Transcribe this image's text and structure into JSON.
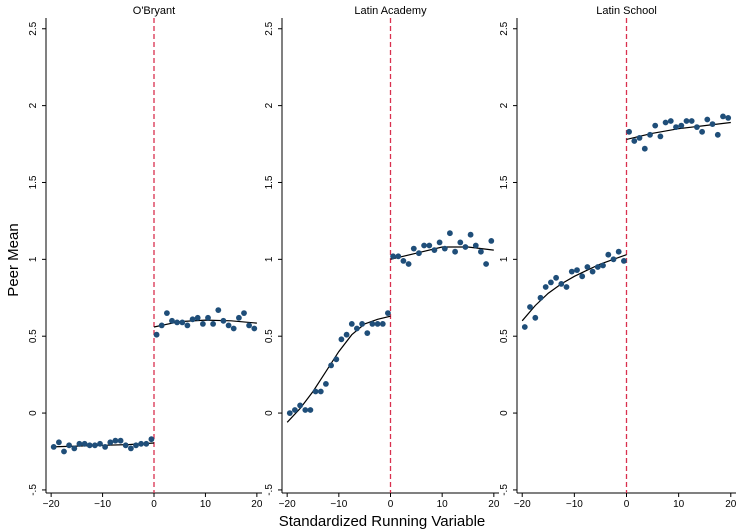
{
  "chart_data": {
    "type": "scatter",
    "ylabel": "Peer Mean",
    "xlabel": "Standardized Running Variable",
    "style": {
      "marker_color": "#1f4e79",
      "fit_color": "#000000",
      "cutoff_color": "#d9304f",
      "cutoff_style": "dashed",
      "grid": false,
      "legend": "none"
    },
    "panels": [
      {
        "title": "O'Bryant",
        "xlim": [
          -21,
          21
        ],
        "ylim": [
          -0.52,
          2.57
        ],
        "xticks": [
          -20,
          -10,
          0,
          10,
          20
        ],
        "yticks": [
          -0.5,
          0,
          0.5,
          1,
          1.5,
          2,
          2.5
        ],
        "ytick_labels": [
          "-.5",
          "0",
          "0.5",
          "1",
          "1.5",
          "2",
          "2.5"
        ],
        "cutoff": 0,
        "points": {
          "x": [
            -19.5,
            -18.5,
            -17.5,
            -16.5,
            -15.5,
            -14.5,
            -13.5,
            -12.5,
            -11.5,
            -10.5,
            -9.5,
            -8.5,
            -7.5,
            -6.5,
            -5.5,
            -4.5,
            -3.5,
            -2.5,
            -1.5,
            -0.5,
            0.5,
            1.5,
            2.5,
            3.5,
            4.5,
            5.5,
            6.5,
            7.5,
            8.5,
            9.5,
            10.5,
            11.5,
            12.5,
            13.5,
            14.5,
            15.5,
            16.5,
            17.5,
            18.5,
            19.5
          ],
          "y": [
            -0.22,
            -0.19,
            -0.25,
            -0.21,
            -0.23,
            -0.2,
            -0.2,
            -0.21,
            -0.21,
            -0.2,
            -0.22,
            -0.19,
            -0.18,
            -0.18,
            -0.21,
            -0.23,
            -0.21,
            -0.2,
            -0.2,
            -0.17,
            0.51,
            0.57,
            0.65,
            0.6,
            0.59,
            0.59,
            0.57,
            0.61,
            0.62,
            0.58,
            0.62,
            0.58,
            0.67,
            0.6,
            0.57,
            0.55,
            0.62,
            0.65,
            0.57,
            0.55
          ]
        },
        "fit": {
          "left": {
            "x": [
              -20,
              -15,
              -10,
              -5,
              0
            ],
            "y": [
              -0.22,
              -0.215,
              -0.21,
              -0.205,
              -0.195
            ]
          },
          "right": {
            "x": [
              0,
              5,
              10,
              15,
              20
            ],
            "y": [
              0.56,
              0.595,
              0.605,
              0.6,
              0.585
            ]
          }
        }
      },
      {
        "title": "Latin Academy",
        "xlim": [
          -21,
          21
        ],
        "ylim": [
          -0.52,
          2.57
        ],
        "xticks": [
          -20,
          -10,
          0,
          10,
          20
        ],
        "yticks": [
          -0.5,
          0,
          0.5,
          1,
          1.5,
          2,
          2.5
        ],
        "ytick_labels": [
          "-.5",
          "0",
          "0.5",
          "1",
          "1.5",
          "2",
          "2.5"
        ],
        "cutoff": 0,
        "points": {
          "x": [
            -19.5,
            -18.5,
            -17.5,
            -16.5,
            -15.5,
            -14.5,
            -13.5,
            -12.5,
            -11.5,
            -10.5,
            -9.5,
            -8.5,
            -7.5,
            -6.5,
            -5.5,
            -4.5,
            -3.5,
            -2.5,
            -1.5,
            -0.5,
            0.5,
            1.5,
            2.5,
            3.5,
            4.5,
            5.5,
            6.5,
            7.5,
            8.5,
            9.5,
            10.5,
            11.5,
            12.5,
            13.5,
            14.5,
            15.5,
            16.5,
            17.5,
            18.5,
            19.5
          ],
          "y": [
            0.0,
            0.02,
            0.05,
            0.02,
            0.02,
            0.14,
            0.14,
            0.19,
            0.31,
            0.35,
            0.48,
            0.51,
            0.58,
            0.55,
            0.58,
            0.52,
            0.58,
            0.58,
            0.58,
            0.65,
            1.02,
            1.02,
            0.99,
            0.97,
            1.07,
            1.04,
            1.09,
            1.09,
            1.06,
            1.11,
            1.07,
            1.17,
            1.05,
            1.11,
            1.08,
            1.16,
            1.09,
            1.05,
            0.97,
            1.12
          ]
        },
        "fit": {
          "left": {
            "x": [
              -20,
              -17.5,
              -15,
              -12.5,
              -10,
              -7.5,
              -5,
              -2.5,
              0
            ],
            "y": [
              -0.06,
              0.03,
              0.14,
              0.27,
              0.4,
              0.51,
              0.58,
              0.61,
              0.63
            ]
          },
          "right": {
            "x": [
              0,
              5,
              10,
              15,
              20
            ],
            "y": [
              1.0,
              1.04,
              1.08,
              1.08,
              1.06
            ]
          }
        }
      },
      {
        "title": "Latin School",
        "xlim": [
          -21,
          21
        ],
        "ylim": [
          -0.52,
          2.57
        ],
        "xticks": [
          -20,
          -10,
          0,
          10,
          20
        ],
        "yticks": [
          -0.5,
          0,
          0.5,
          1,
          1.5,
          2,
          2.5
        ],
        "ytick_labels": [
          "-.5",
          "0",
          "0.5",
          "1",
          "1.5",
          "2",
          "2.5"
        ],
        "cutoff": 0,
        "points": {
          "x": [
            -19.5,
            -18.5,
            -17.5,
            -16.5,
            -15.5,
            -14.5,
            -13.5,
            -12.5,
            -11.5,
            -10.5,
            -9.5,
            -8.5,
            -7.5,
            -6.5,
            -5.5,
            -4.5,
            -3.5,
            -2.5,
            -1.5,
            -0.5,
            0.5,
            1.5,
            2.5,
            3.5,
            4.5,
            5.5,
            6.5,
            7.5,
            8.5,
            9.5,
            10.5,
            11.5,
            12.5,
            13.5,
            14.5,
            15.5,
            16.5,
            17.5,
            18.5,
            19.5
          ],
          "y": [
            0.56,
            0.69,
            0.62,
            0.75,
            0.82,
            0.85,
            0.88,
            0.84,
            0.82,
            0.92,
            0.93,
            0.89,
            0.95,
            0.92,
            0.95,
            0.96,
            1.03,
            1.0,
            1.05,
            0.99,
            1.83,
            1.77,
            1.79,
            1.72,
            1.81,
            1.87,
            1.8,
            1.89,
            1.9,
            1.86,
            1.87,
            1.9,
            1.9,
            1.86,
            1.83,
            1.91,
            1.88,
            1.81,
            1.93,
            1.92
          ]
        },
        "fit": {
          "left": {
            "x": [
              -20,
              -17.5,
              -15,
              -12.5,
              -10,
              -7.5,
              -5,
              -2.5,
              0
            ],
            "y": [
              0.6,
              0.7,
              0.78,
              0.84,
              0.89,
              0.93,
              0.97,
              1.0,
              1.03
            ]
          },
          "right": {
            "x": [
              0,
              5,
              10,
              15,
              20
            ],
            "y": [
              1.78,
              1.82,
              1.85,
              1.87,
              1.89
            ]
          }
        }
      }
    ]
  }
}
